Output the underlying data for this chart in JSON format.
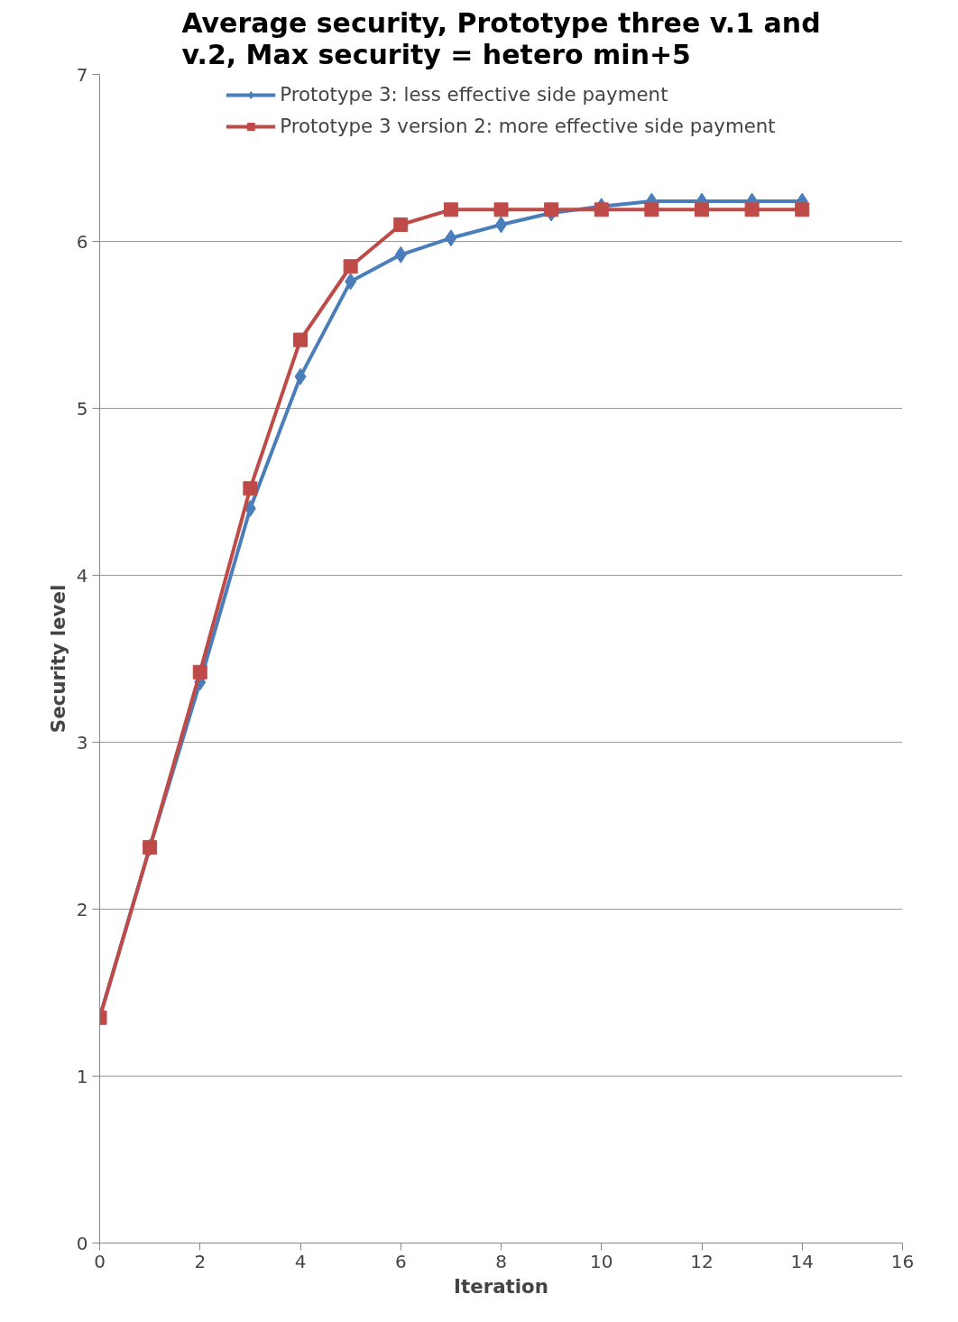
{
  "chart_data": {
    "type": "line",
    "title": "Average security, Prototype three v.1 and v.2, Max security = hetero min+5",
    "xlabel": "Iteration",
    "ylabel": "Security level",
    "x": [
      0,
      1,
      2,
      3,
      4,
      5,
      6,
      7,
      8,
      9,
      10,
      11,
      12,
      13,
      14
    ],
    "series": [
      {
        "name": "Prototype 3: less effective side payment",
        "color": "#4a7ebb",
        "marker": "diamond",
        "values": [
          1.35,
          2.37,
          3.36,
          4.4,
          5.19,
          5.76,
          5.92,
          6.02,
          6.1,
          6.17,
          6.21,
          6.24,
          6.24,
          6.24,
          6.24
        ]
      },
      {
        "name": "Prototype 3 version 2: more effective side payment",
        "color": "#be4b48",
        "marker": "square",
        "values": [
          1.35,
          2.37,
          3.42,
          4.52,
          5.41,
          5.85,
          6.1,
          6.19,
          6.19,
          6.19,
          6.19,
          6.19,
          6.19,
          6.19,
          6.19
        ]
      }
    ],
    "xlim": [
      0,
      16
    ],
    "xticks": [
      0,
      2,
      4,
      6,
      8,
      10,
      12,
      14,
      16
    ],
    "ylim": [
      0,
      7
    ],
    "yticks": [
      0,
      1,
      2,
      3,
      4,
      5,
      6,
      7
    ],
    "grid": "y",
    "legend": "top",
    "line_style": "solid"
  }
}
